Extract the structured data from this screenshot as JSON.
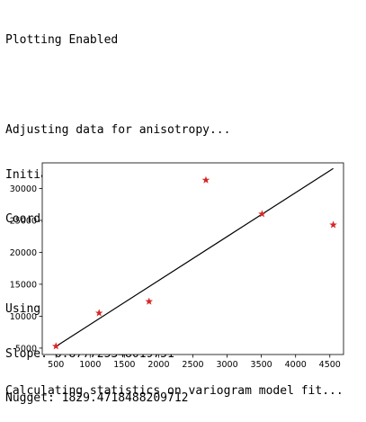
{
  "log": {
    "lines": [
      "Plotting Enabled",
      "",
      "Adjusting data for anisotropy...",
      "Initializing variogram model...",
      "Coordinates type: 'euclidean'",
      "",
      "Using 'linear' Variogram Model",
      "Slope: 6.877725348019751",
      "Nugget: 1829.4718488209712"
    ]
  },
  "footer": {
    "text": "Calculating statistics on variogram model fit..."
  },
  "chart_data": {
    "type": "scatter",
    "title": "",
    "xlabel": "",
    "ylabel": "",
    "xlim": [
      300,
      4700
    ],
    "ylim": [
      4000,
      34000
    ],
    "x_ticks": [
      500,
      1000,
      1500,
      2000,
      2500,
      3000,
      3500,
      4000,
      4500
    ],
    "y_ticks": [
      5000,
      10000,
      15000,
      20000,
      25000,
      30000
    ],
    "grid": false,
    "series": [
      {
        "kind": "points",
        "marker": "star",
        "color": "#d62728",
        "x": [
          500,
          1130,
          1860,
          2690,
          3510,
          4550
        ],
        "y": [
          5300,
          10500,
          12300,
          31300,
          26000,
          24300
        ]
      },
      {
        "kind": "line",
        "color": "#000000",
        "x": [
          500,
          4550
        ],
        "y": [
          5268.3,
          33123.1
        ]
      }
    ]
  }
}
